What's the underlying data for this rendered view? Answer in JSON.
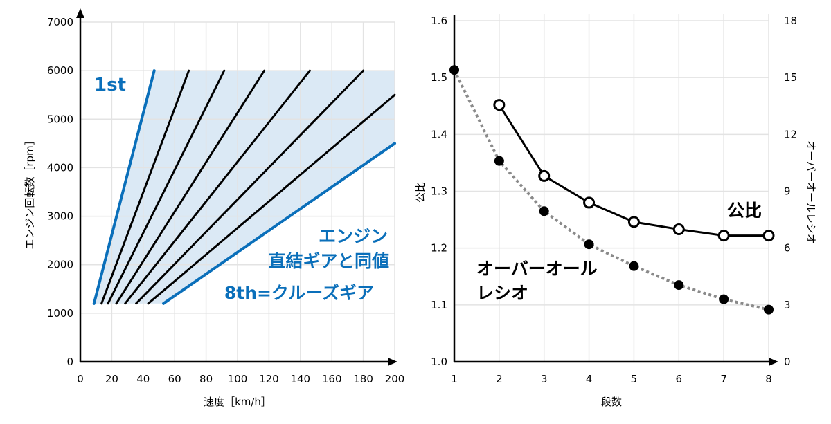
{
  "colors": {
    "accent": "#0a6fba",
    "shade": "#dbe9f5",
    "grid": "#e3e3e3",
    "line": "#000000",
    "dotted": "#8a8a8a"
  },
  "chart_data": [
    {
      "type": "line",
      "xlabel": "速度［km/h］",
      "ylabel": "エンジン回転数［rpm］",
      "xlim": [
        0,
        200
      ],
      "ylim": [
        0,
        7000
      ],
      "xticks": [
        0,
        20,
        40,
        60,
        80,
        100,
        120,
        140,
        160,
        180,
        200
      ],
      "yticks": [
        0,
        1000,
        2000,
        3000,
        4000,
        5000,
        6000,
        7000
      ],
      "grid": true,
      "series": [
        {
          "name": "1st",
          "points": [
            [
              8.7,
              1200
            ],
            [
              47,
              6000
            ]
          ],
          "color": "#0a6fba"
        },
        {
          "points": [
            [
              13.5,
              1200
            ],
            [
              69,
              6000
            ]
          ],
          "color": "#000000"
        },
        {
          "points": [
            [
              17.6,
              1200
            ],
            [
              91.5,
              6000
            ]
          ],
          "color": "#000000"
        },
        {
          "points": [
            [
              22.9,
              1200
            ],
            [
              117,
              6000
            ]
          ],
          "color": "#000000"
        },
        {
          "points": [
            [
              28.5,
              1200
            ],
            [
              146,
              6000
            ]
          ],
          "color": "#000000"
        },
        {
          "points": [
            [
              35.5,
              1200
            ],
            [
              180,
              6000
            ]
          ],
          "color": "#000000"
        },
        {
          "points": [
            [
              43.2,
              1200
            ],
            [
              200,
              5500
            ]
          ],
          "color": "#000000"
        },
        {
          "name": "8th=クルーズギア",
          "points": [
            [
              52.9,
              1200
            ],
            [
              200,
              4500
            ]
          ],
          "color": "#0a6fba"
        }
      ],
      "shaded_range_rpm": [
        1200,
        6000
      ],
      "annotations": [
        "1st",
        "エンジン",
        "直結ギアと同値",
        "8th=クルーズギア"
      ]
    },
    {
      "type": "line",
      "xlabel": "段数",
      "ylabel": "公比",
      "ylabel_right": "オーバーオールレシオ",
      "xlim": [
        1,
        8
      ],
      "ylim": [
        1.0,
        1.6
      ],
      "ylim_right": [
        0,
        18
      ],
      "xticks": [
        1,
        2,
        3,
        4,
        5,
        6,
        7,
        8
      ],
      "yticks": [
        "1.0",
        "1.1",
        "1.2",
        "1.3",
        "1.4",
        "1.5",
        "1.6"
      ],
      "yticks_right": [
        0,
        3,
        6,
        9,
        12,
        15,
        18
      ],
      "grid": true,
      "series": [
        {
          "name": "公比",
          "axis": "left",
          "marker": "open-circle",
          "style": "solid",
          "x": [
            2,
            3,
            4,
            5,
            6,
            7,
            8
          ],
          "y": [
            1.452,
            1.327,
            1.28,
            1.246,
            1.233,
            1.222,
            1.222
          ]
        },
        {
          "name": "オーバーオールレシオ",
          "axis": "right",
          "marker": "filled-circle",
          "style": "dotted",
          "x": [
            1,
            2,
            3,
            4,
            5,
            6,
            7,
            8
          ],
          "y": [
            15.4,
            10.6,
            7.95,
            6.2,
            5.05,
            4.05,
            3.3,
            2.75
          ]
        }
      ],
      "annotations": [
        "公比",
        "オーバーオール",
        "レシオ"
      ]
    }
  ]
}
